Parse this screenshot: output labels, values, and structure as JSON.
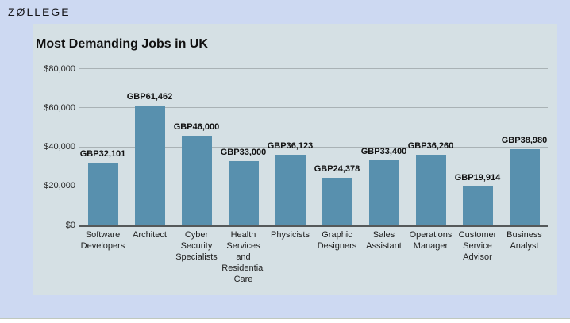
{
  "logo": {
    "text": "ZØLLEGE"
  },
  "chart_data": {
    "type": "bar",
    "title": "Most Demanding Jobs in UK",
    "categories": [
      "Software Developers",
      "Architect",
      "Cyber Security Specialists",
      "Health Services and Residential Care",
      "Physicists",
      "Graphic Designers",
      "Sales Assistant",
      "Operations Manager",
      "Customer Service Advisor",
      "Business Analyst"
    ],
    "values": [
      32101,
      61462,
      46000,
      33000,
      36123,
      24378,
      33400,
      36260,
      19914,
      38980
    ],
    "bar_labels": [
      "GBP32,101",
      "GBP61,462",
      "GBP46,000",
      "GBP33,000",
      "GBP36,123",
      "GBP24,378",
      "GBP33,400",
      "GBP36,260",
      "GBP19,914",
      "GBP38,980"
    ],
    "xlabel": "",
    "ylabel": "",
    "y_ticks": [
      "$0",
      "$20,000",
      "$40,000",
      "$60,000",
      "$80,000"
    ],
    "y_tick_values": [
      0,
      20000,
      40000,
      60000,
      80000
    ],
    "ylim": [
      0,
      80000
    ],
    "grid": true,
    "legend": false,
    "colors": {
      "bar": "#5890AE",
      "panel_bg": "#D5E0E4",
      "page_bg": "#CDD9F2",
      "gridline": "#A9B2B5",
      "axis_line": "#55595A",
      "text": "#1A1A1A"
    }
  }
}
